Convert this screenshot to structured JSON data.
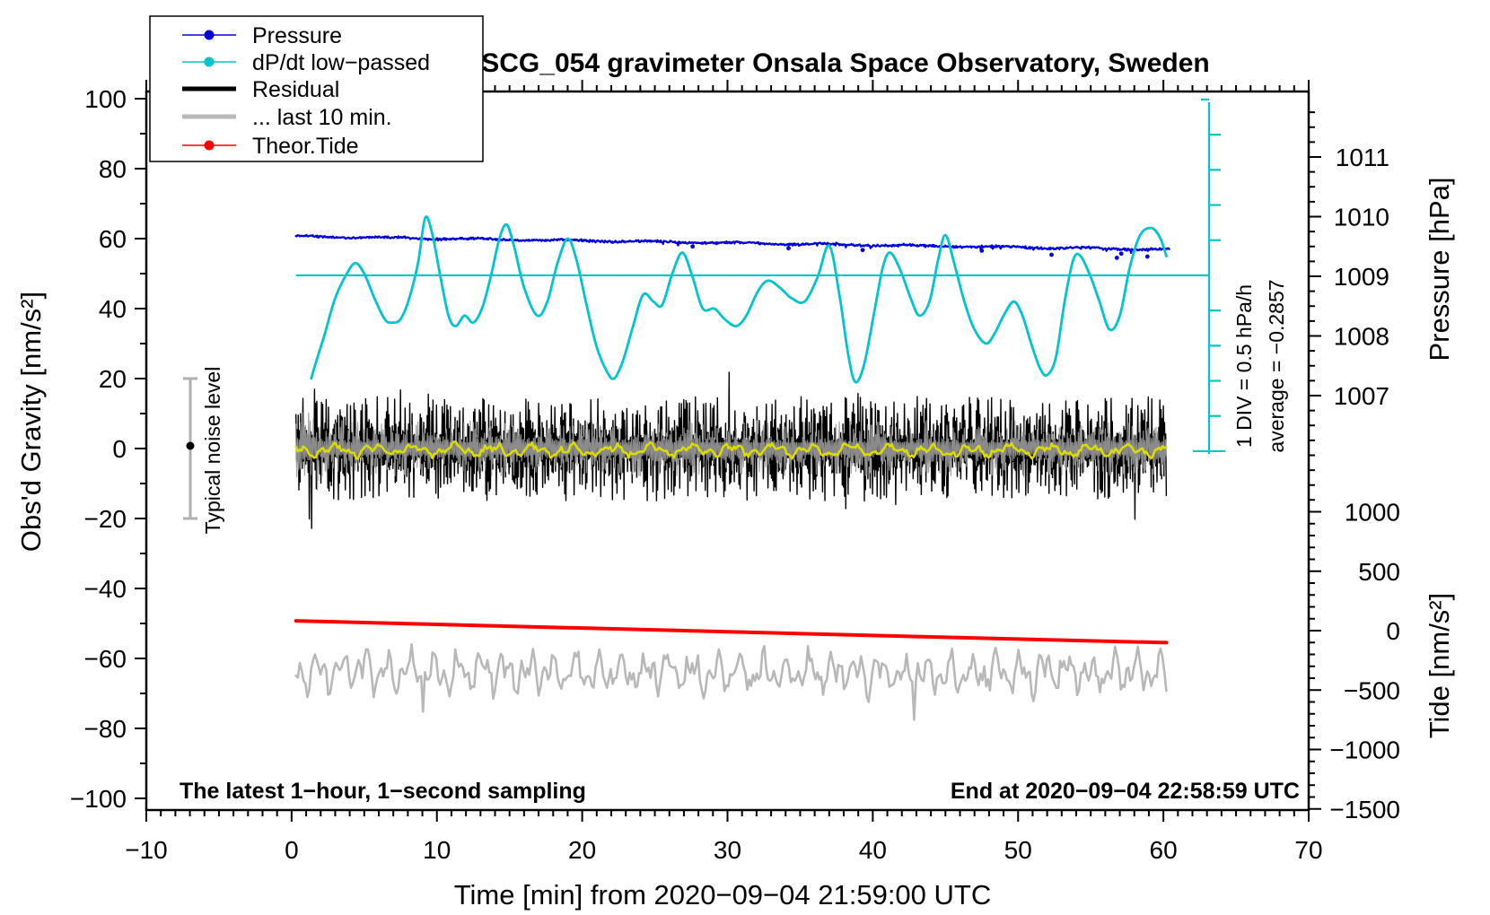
{
  "title": "SCG_054 gravimeter Onsala Space Observatory, Sweden",
  "legend": {
    "items": [
      {
        "label": "Pressure",
        "color": "#0000dd",
        "style": "line-dot"
      },
      {
        "label": "dP/dt low−passed",
        "color": "#00c5ca",
        "style": "line-dot"
      },
      {
        "label": "Residual",
        "color": "#000000",
        "style": "thick-line"
      },
      {
        "label": "... last 10 min.",
        "color": "#b8b8b8",
        "style": "thick-line"
      },
      {
        "label": "Theor.Tide",
        "color": "#ff0000",
        "style": "line-dot"
      }
    ]
  },
  "axes": {
    "x": {
      "label": "Time [min] from 2020−09−04 21:59:00 UTC",
      "min": -10,
      "max": 70,
      "major_ticks": [
        -10,
        0,
        10,
        20,
        30,
        40,
        50,
        60,
        70
      ],
      "minor_step": 1
    },
    "y_left": {
      "label": "Obs'd Gravity [nm/s²]",
      "min": -100,
      "max": 100,
      "major_ticks": [
        100,
        80,
        60,
        40,
        20,
        0,
        -20,
        -40,
        -60,
        -80,
        -100
      ],
      "minor_step": 10
    },
    "y_right_pressure": {
      "label": "Pressure [hPa]",
      "major_ticks": [
        1011,
        1010,
        1009,
        1008,
        1007
      ],
      "minor_step": 0.25
    },
    "y_right_tide": {
      "label": "Tide [nm/s²]",
      "major_ticks": [
        1000,
        500,
        0,
        -500,
        -1000,
        -1500
      ],
      "minor_step": 100
    }
  },
  "annotations": {
    "noise_level": "Typical noise level",
    "div_scale": "1 DIV = 0.5 hPa/h",
    "average": "average = −0.2857",
    "sampling": "The latest 1−hour, 1−second sampling",
    "end_time": "End at 2020−09−04 22:58:59 UTC"
  },
  "chart_data": {
    "type": "line",
    "title": "SCG_054 gravimeter Onsala Space Observatory, Sweden",
    "xlabel": "Time [min] from 2020−09−04 21:59:00 UTC",
    "x_range": [
      -10,
      70
    ],
    "gravity_range": [
      -100,
      100
    ],
    "pressure_ticks_hPa": [
      1011,
      1010,
      1009,
      1008,
      1007
    ],
    "tide_ticks_nm_s2": [
      1000,
      500,
      0,
      -500,
      -1000,
      -1500
    ],
    "series": [
      {
        "name": "Pressure",
        "color": "#0000dd",
        "axis": "pressure_hPa",
        "style": "noisy-dotted-band",
        "t_range": [
          0.3,
          60.4
        ],
        "trend_hPa": [
          [
            0,
            1009.67
          ],
          [
            60,
            1009.45
          ]
        ],
        "noise_sd_hPa": 0.022,
        "outliers": [
          [
            27.6,
            1009.5
          ],
          [
            34.2,
            1009.47
          ],
          [
            39.3,
            1009.44
          ],
          [
            47.5,
            1009.43
          ],
          [
            52.3,
            1009.36
          ],
          [
            56.8,
            1009.31
          ],
          [
            57.1,
            1009.38
          ],
          [
            58.9,
            1009.33
          ]
        ],
        "n": 1100,
        "seed": 21
      },
      {
        "name": "dP/dt low−passed",
        "color": "#00c5ca",
        "axis": "gravity_equivalent_nm_s2",
        "scale_note": "1 DIV = 0.5 hPa/h",
        "average_hPa_per_h": -0.2857,
        "reference_line_gravity": 49.5,
        "points": [
          [
            1.35,
            20
          ],
          [
            1.7,
            25
          ],
          [
            2.3,
            33
          ],
          [
            3.0,
            43
          ],
          [
            3.8,
            50
          ],
          [
            4.4,
            53
          ],
          [
            5.0,
            50
          ],
          [
            5.7,
            43
          ],
          [
            6.4,
            37
          ],
          [
            6.9,
            36
          ],
          [
            7.5,
            37
          ],
          [
            8.1,
            43
          ],
          [
            8.7,
            53
          ],
          [
            9.2,
            66
          ],
          [
            9.7,
            61
          ],
          [
            10.2,
            50
          ],
          [
            10.8,
            38
          ],
          [
            11.3,
            35
          ],
          [
            11.9,
            38
          ],
          [
            12.5,
            36
          ],
          [
            13.1,
            40
          ],
          [
            13.7,
            49
          ],
          [
            14.3,
            60
          ],
          [
            14.8,
            64
          ],
          [
            15.3,
            58
          ],
          [
            16.0,
            46
          ],
          [
            16.9,
            38
          ],
          [
            17.6,
            42
          ],
          [
            18.3,
            53
          ],
          [
            19.0,
            60
          ],
          [
            19.6,
            54
          ],
          [
            20.3,
            41
          ],
          [
            21.0,
            29
          ],
          [
            21.7,
            22
          ],
          [
            22.2,
            20
          ],
          [
            22.8,
            25
          ],
          [
            23.5,
            35
          ],
          [
            24.2,
            44
          ],
          [
            24.9,
            42
          ],
          [
            25.5,
            41
          ],
          [
            26.2,
            50
          ],
          [
            26.9,
            56
          ],
          [
            27.6,
            49
          ],
          [
            28.3,
            40
          ],
          [
            29.1,
            40
          ],
          [
            29.8,
            37
          ],
          [
            30.6,
            35
          ],
          [
            31.3,
            38
          ],
          [
            32.1,
            45
          ],
          [
            32.8,
            48
          ],
          [
            33.6,
            46
          ],
          [
            34.4,
            43
          ],
          [
            35.3,
            42
          ],
          [
            36.2,
            49
          ],
          [
            37.0,
            58
          ],
          [
            37.7,
            44
          ],
          [
            38.3,
            27
          ],
          [
            38.8,
            19
          ],
          [
            39.4,
            24
          ],
          [
            40.1,
            39
          ],
          [
            40.7,
            52
          ],
          [
            41.2,
            56
          ],
          [
            41.9,
            51
          ],
          [
            42.6,
            43
          ],
          [
            43.2,
            38
          ],
          [
            43.9,
            42
          ],
          [
            44.5,
            54
          ],
          [
            45.0,
            61
          ],
          [
            45.6,
            53
          ],
          [
            46.3,
            42
          ],
          [
            47.0,
            34
          ],
          [
            47.8,
            30
          ],
          [
            48.4,
            33
          ],
          [
            49.0,
            38
          ],
          [
            49.7,
            42
          ],
          [
            50.3,
            38
          ],
          [
            50.9,
            30
          ],
          [
            51.5,
            23
          ],
          [
            52.0,
            21
          ],
          [
            52.6,
            26
          ],
          [
            53.2,
            42
          ],
          [
            53.8,
            54
          ],
          [
            54.3,
            55
          ],
          [
            55.0,
            49
          ],
          [
            55.6,
            42
          ],
          [
            56.3,
            34
          ],
          [
            57.0,
            38
          ],
          [
            57.7,
            52
          ],
          [
            58.4,
            61
          ],
          [
            59.2,
            63
          ],
          [
            59.8,
            60
          ],
          [
            60.2,
            55
          ]
        ]
      },
      {
        "name": "Residual",
        "color": "#000000",
        "axis": "gravity_nm_s2",
        "style": "dense-noise",
        "mean": 0,
        "typical_amplitude": 15,
        "initial_amplitude": 23,
        "t_range": [
          0.3,
          60.2
        ],
        "n": 1500,
        "seed": 13
      },
      {
        "name": "Residual low-passed (yellow)",
        "color": "#dcdc00",
        "axis": "gravity_nm_s2",
        "mean": -0.5,
        "amplitude": 2.5,
        "t_range": [
          0.3,
          60.2
        ],
        "n": 480,
        "seed": 3
      },
      {
        "name": "... last 10 min.",
        "color": "#b8b8b8",
        "axis": "gravity_nm_s2",
        "style": "noisy-line",
        "mean": -64,
        "amplitude": 6,
        "t_range": [
          0.3,
          60.2
        ],
        "n": 460,
        "seed": 9
      },
      {
        "name": "Theor.Tide",
        "color": "#ff0000",
        "axis": "tide_nm_s2",
        "points": [
          [
            0.3,
            82
          ],
          [
            15,
            37
          ],
          [
            30,
            -9
          ],
          [
            45,
            -56
          ],
          [
            60.2,
            -101
          ]
        ]
      }
    ],
    "gray_overlay": {
      "color": "#9a9a9a",
      "amplitude": 8,
      "initial_amplitude": 12,
      "n": 1100,
      "seed": 5
    },
    "noise_errorbar": {
      "center_gravity": 0,
      "range_gravity": [
        -20,
        20
      ]
    }
  }
}
